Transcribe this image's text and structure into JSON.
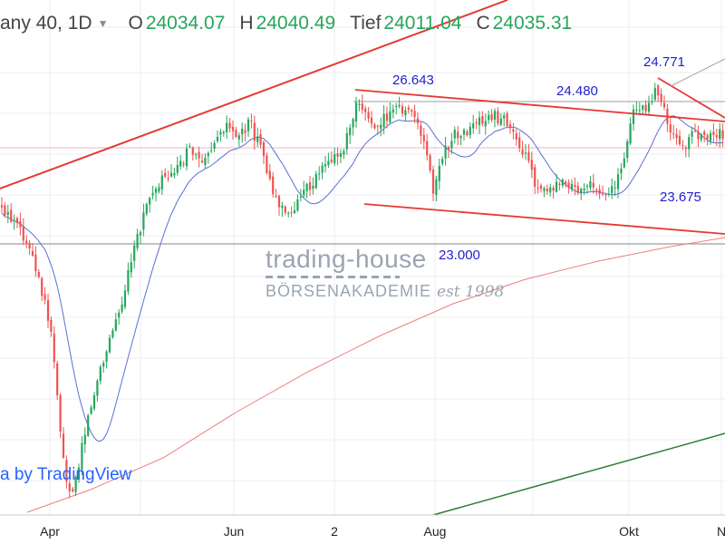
{
  "header": {
    "symbol": "any 40, 1D",
    "open_key": "O",
    "open_value": "24034.07",
    "high_key": "H",
    "high_value": "24040.49",
    "low_key": "Tief",
    "low_value": "24011.04",
    "close_key": "C",
    "close_value": "24035.31"
  },
  "annotations": {
    "a1": "26.643",
    "a2": "24.480",
    "a3": "24.771",
    "a4": "23.675",
    "a5": "23.000"
  },
  "watermark": {
    "line1": "trading-house",
    "line2": "BÖRSENAKADEMIE",
    "line3": "est 1998"
  },
  "attribution": "a by TradingView",
  "colors": {
    "up": "#26a65b",
    "down": "#ef5350",
    "trendline": "#e53935",
    "ma_fast": "#5b6fd6",
    "ma_slow": "#ef7f7f",
    "support": "#2e7d32",
    "annotation": "#1f1fcc"
  },
  "chart_data": {
    "type": "candlestick",
    "x_ticks": [
      "Apr",
      "Jun",
      "2",
      "Aug",
      "Okt",
      "N"
    ],
    "grid": true,
    "series": [
      {
        "name": "",
        "values": []
      }
    ]
  }
}
